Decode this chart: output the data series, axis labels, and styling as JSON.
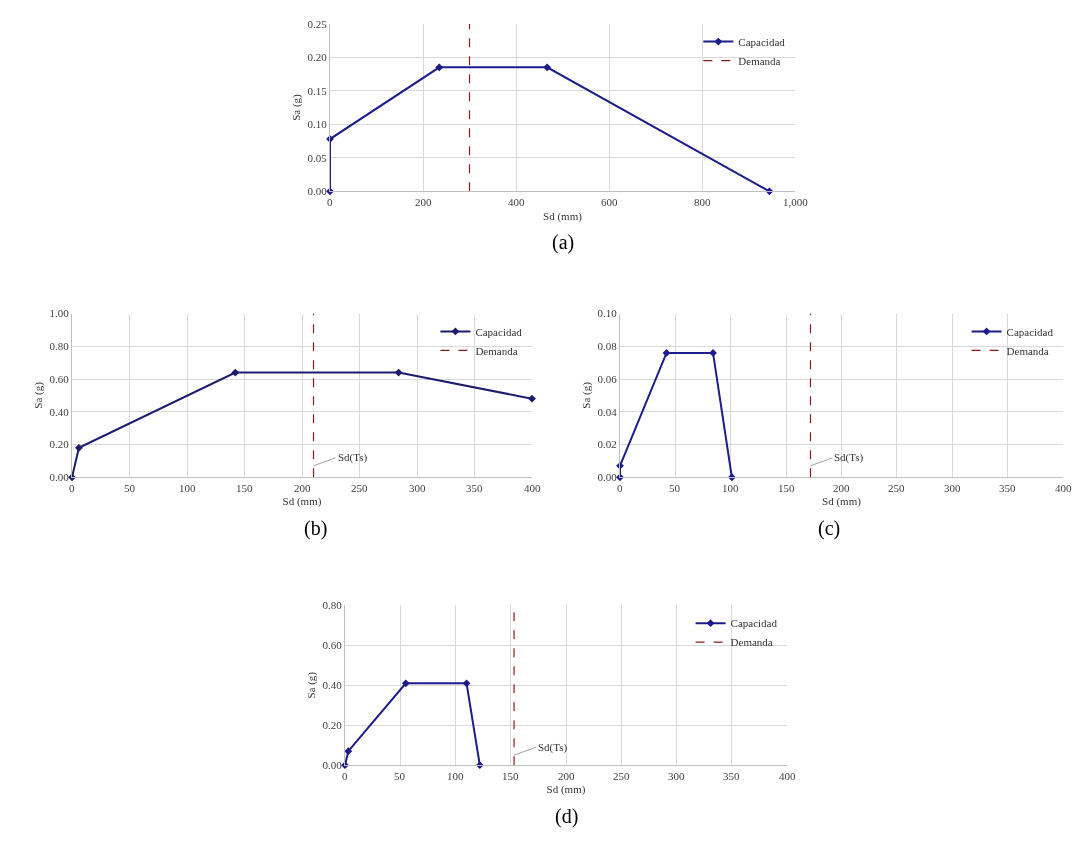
{
  "chart_data": [
    {
      "type": "line",
      "xlabel": "Sd (mm)",
      "ylabel": "Sa (g)",
      "xlim": [
        0,
        1000
      ],
      "xticks": [
        0,
        200,
        400,
        600,
        800,
        {
          "value": 1000,
          "label": "1,000"
        }
      ],
      "ylim": [
        0,
        0.25
      ],
      "yticks": [
        {
          "value": 0,
          "label": "0.00"
        },
        {
          "value": 0.05,
          "label": "0.05"
        },
        {
          "value": 0.1,
          "label": "0.10"
        },
        {
          "value": 0.15,
          "label": "0.15"
        },
        {
          "value": 0.2,
          "label": "0.20"
        },
        {
          "value": 0.25,
          "label": "0.25"
        }
      ],
      "grid": true,
      "legend": "top right",
      "annotations": [
        "(a)"
      ],
      "series": [
        {
          "name": "Capacidad",
          "color": "#1c1c8c",
          "marker": "diamond",
          "line_style": "solid",
          "x": [
            0,
            0,
            235,
            467,
            945
          ],
          "values": [
            0,
            0.078,
            0.185,
            0.185,
            0
          ]
        },
        {
          "name": "Demanda",
          "color": "#8b1a1a",
          "marker": "none",
          "line_style": "dashed",
          "x": [
            300,
            300
          ],
          "values": [
            0,
            0.25
          ]
        }
      ]
    },
    {
      "type": "line",
      "xlabel": "Sd (mm)",
      "ylabel": "Sa (g)",
      "xlim": [
        0,
        400
      ],
      "xticks": [
        0,
        50,
        100,
        150,
        200,
        250,
        300,
        350,
        400
      ],
      "ylim": [
        0,
        1
      ],
      "yticks": [
        {
          "value": 0,
          "label": "0.00"
        },
        {
          "value": 0.2,
          "label": "0.20"
        },
        {
          "value": 0.4,
          "label": "0.40"
        },
        {
          "value": 0.6,
          "label": "0.60"
        },
        {
          "value": 0.8,
          "label": "0.80"
        },
        {
          "value": 1,
          "label": "1.00"
        }
      ],
      "grid": true,
      "legend": "top right",
      "annotations": [
        {
          "text": "Sd(Ts)",
          "x": 210,
          "y": 0.07
        },
        "(b)"
      ],
      "series": [
        {
          "name": "Capacidad",
          "color": "#1c1c6e",
          "marker": "diamond",
          "line_style": "solid",
          "x": [
            0,
            6,
            142,
            284,
            400
          ],
          "values": [
            0,
            0.18,
            0.64,
            0.64,
            0.48
          ]
        },
        {
          "name": "Demanda",
          "color": "#8b1a1a",
          "marker": "none",
          "line_style": "dashed",
          "x": [
            210,
            210
          ],
          "values": [
            0,
            1
          ]
        }
      ]
    },
    {
      "type": "line",
      "xlabel": "Sd (mm)",
      "ylabel": "Sa (g)",
      "xlim": [
        0,
        400
      ],
      "xticks": [
        0,
        50,
        100,
        150,
        200,
        250,
        300,
        350,
        400
      ],
      "ylim": [
        0,
        0.1
      ],
      "yticks": [
        {
          "value": 0,
          "label": "0.00"
        },
        {
          "value": 0.02,
          "label": "0.02"
        },
        {
          "value": 0.04,
          "label": "0.04"
        },
        {
          "value": 0.06,
          "label": "0.06"
        },
        {
          "value": 0.08,
          "label": "0.08"
        },
        {
          "value": 0.1,
          "label": "0.10"
        }
      ],
      "grid": true,
      "legend": "top right",
      "annotations": [
        {
          "text": "Sd(Ts)",
          "x": 172,
          "y": 0.007
        },
        "(c)"
      ],
      "series": [
        {
          "name": "Capacidad",
          "color": "#1c1c8c",
          "marker": "diamond",
          "line_style": "solid",
          "x": [
            0,
            0,
            42,
            84,
            101
          ],
          "values": [
            0,
            0.007,
            0.076,
            0.076,
            0
          ]
        },
        {
          "name": "Demanda",
          "color": "#8b1a1a",
          "marker": "none",
          "line_style": "dashed",
          "x": [
            172,
            172
          ],
          "values": [
            0,
            0.1
          ]
        }
      ]
    },
    {
      "type": "line",
      "xlabel": "Sd (mm)",
      "ylabel": "Sa (g)",
      "xlim": [
        0,
        400
      ],
      "xticks": [
        0,
        50,
        100,
        150,
        200,
        250,
        300,
        350,
        400
      ],
      "ylim": [
        0,
        0.8
      ],
      "yticks": [
        {
          "value": 0,
          "label": "0.00"
        },
        {
          "value": 0.2,
          "label": "0.20"
        },
        {
          "value": 0.4,
          "label": "0.40"
        },
        {
          "value": 0.6,
          "label": "0.60"
        },
        {
          "value": 0.8,
          "label": "0.80"
        }
      ],
      "grid": true,
      "legend": "top right",
      "annotations": [
        {
          "text": "Sd(Ts)",
          "x": 153,
          "y": 0.05
        },
        "(d)"
      ],
      "series": [
        {
          "name": "Capacidad",
          "color": "#1c1c8c",
          "marker": "diamond",
          "line_style": "solid",
          "x": [
            0,
            3,
            55,
            110,
            122
          ],
          "values": [
            0,
            0.07,
            0.41,
            0.41,
            0
          ]
        },
        {
          "name": "Demanda",
          "color": "#8b1a1a",
          "marker": "none",
          "line_style": "dashed",
          "x": [
            153,
            153
          ],
          "values": [
            0,
            0.8
          ]
        }
      ]
    }
  ]
}
